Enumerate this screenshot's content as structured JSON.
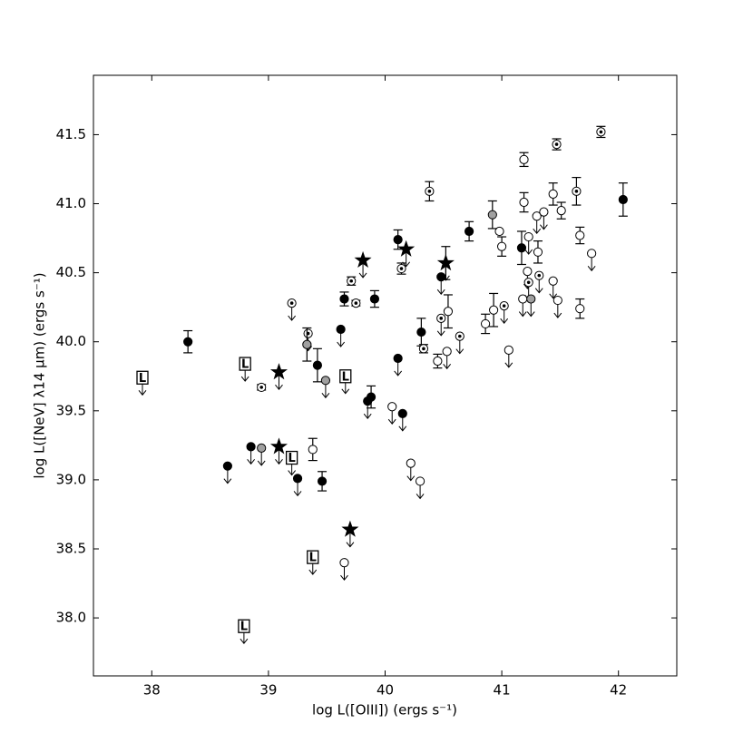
{
  "chart_data": {
    "type": "scatter",
    "xlabel": "log L([OIII]) (ergs s⁻¹)",
    "ylabel": "log L([NeV] λ14 μm) (ergs s⁻¹)",
    "xlim": [
      37.5,
      42.5
    ],
    "ylim": [
      37.58,
      41.93
    ],
    "xticks": [
      38,
      39,
      40,
      41,
      42
    ],
    "yticks": [
      {
        "value": 38,
        "label": "38.0"
      },
      38.5,
      {
        "value": 39,
        "label": "39.0"
      },
      39.5,
      {
        "value": 40,
        "label": "40.0"
      },
      40.5,
      {
        "value": 41,
        "label": "41.0"
      },
      41.5
    ],
    "series": [
      {
        "marker": "circle",
        "color": "#000000",
        "x": [
          38.31,
          38.65,
          38.85,
          39.25,
          39.46,
          39.62,
          39.65,
          39.42,
          39.91,
          39.85,
          39.88,
          40.11,
          40.11,
          40.15,
          40.31,
          40.48,
          40.72,
          41.17,
          42.04
        ],
        "values": [
          40.0,
          39.1,
          39.24,
          39.01,
          38.99,
          40.09,
          40.31,
          39.83,
          40.31,
          39.57,
          39.6,
          39.88,
          40.74,
          39.48,
          40.07,
          40.47,
          40.8,
          40.68,
          41.03
        ],
        "yerr": [
          0.08,
          null,
          null,
          null,
          0.07,
          null,
          0.05,
          0.12,
          0.06,
          null,
          0.08,
          null,
          0.07,
          null,
          0.1,
          null,
          0.07,
          0.12,
          0.12
        ],
        "upper_limit": [
          false,
          true,
          true,
          true,
          false,
          true,
          false,
          false,
          false,
          true,
          false,
          true,
          false,
          true,
          false,
          true,
          false,
          false,
          false
        ]
      },
      {
        "marker": "circle",
        "color": "#ffffff",
        "x": [
          39.65,
          39.38,
          40.06,
          40.22,
          40.3,
          40.45,
          40.53,
          40.54,
          40.86,
          40.93,
          40.98,
          41.0,
          41.06,
          41.19,
          41.19,
          41.23,
          41.22,
          41.3,
          41.31,
          41.36,
          41.44,
          41.44,
          41.48,
          41.51,
          41.67,
          41.67,
          41.77,
          41.18
        ],
        "values": [
          38.4,
          39.22,
          39.53,
          39.12,
          38.99,
          39.86,
          39.93,
          40.22,
          40.13,
          40.23,
          40.8,
          40.69,
          39.94,
          41.32,
          41.01,
          40.76,
          40.51,
          40.91,
          40.65,
          40.94,
          41.07,
          40.44,
          40.3,
          40.95,
          40.77,
          40.24,
          40.64,
          40.31
        ],
        "yerr": [
          null,
          0.08,
          null,
          null,
          null,
          0.05,
          null,
          0.12,
          0.07,
          0.12,
          null,
          0.07,
          null,
          0.05,
          0.07,
          null,
          null,
          null,
          0.08,
          null,
          0.08,
          null,
          null,
          0.06,
          0.06,
          0.07,
          null,
          null
        ],
        "upper_limit": [
          true,
          false,
          true,
          true,
          true,
          false,
          true,
          false,
          false,
          false,
          false,
          false,
          true,
          false,
          false,
          true,
          true,
          true,
          false,
          true,
          false,
          true,
          true,
          false,
          false,
          false,
          true,
          true
        ]
      },
      {
        "marker": "dotted-circle",
        "color": "#ffffff",
        "x": [
          38.94,
          39.2,
          39.34,
          39.71,
          39.75,
          40.14,
          40.33,
          40.38,
          40.48,
          40.64,
          41.02,
          41.23,
          41.32,
          41.47,
          41.64,
          41.85
        ],
        "values": [
          39.67,
          40.28,
          40.06,
          40.44,
          40.28,
          40.53,
          39.95,
          41.09,
          40.17,
          40.04,
          40.26,
          40.43,
          40.48,
          41.43,
          41.09,
          41.52
        ],
        "yerr": [
          0.02,
          null,
          null,
          0.03,
          0.02,
          0.04,
          0.03,
          0.07,
          null,
          null,
          null,
          null,
          null,
          0.04,
          0.1,
          0.04
        ],
        "upper_limit": [
          false,
          true,
          true,
          false,
          false,
          false,
          false,
          false,
          true,
          true,
          true,
          true,
          true,
          false,
          false,
          false
        ]
      },
      {
        "marker": "circle",
        "color": "#a0a0a0",
        "x": [
          38.94,
          39.33,
          39.49,
          40.92,
          41.25
        ],
        "values": [
          39.23,
          39.98,
          39.72,
          40.92,
          40.31
        ],
        "yerr": [
          null,
          0.12,
          null,
          0.1,
          null
        ],
        "upper_limit": [
          true,
          false,
          true,
          false,
          true
        ]
      },
      {
        "marker": "star",
        "color": "#000000",
        "x": [
          39.09,
          39.09,
          39.7,
          39.81,
          40.18,
          40.52
        ],
        "values": [
          39.78,
          39.24,
          38.64,
          40.59,
          40.67,
          40.57
        ],
        "yerr": [
          null,
          null,
          null,
          null,
          null,
          0.12
        ],
        "upper_limit": [
          true,
          true,
          true,
          true,
          true,
          true
        ]
      },
      {
        "marker": "box",
        "marker_label": "L",
        "color": "#ffffff",
        "x": [
          37.92,
          38.8,
          39.2,
          39.66,
          39.38,
          38.79
        ],
        "values": [
          39.74,
          39.84,
          39.16,
          39.75,
          38.44,
          37.94
        ],
        "yerr": [
          null,
          null,
          null,
          null,
          null,
          null
        ],
        "upper_limit": [
          true,
          true,
          true,
          true,
          true,
          true
        ]
      }
    ]
  }
}
